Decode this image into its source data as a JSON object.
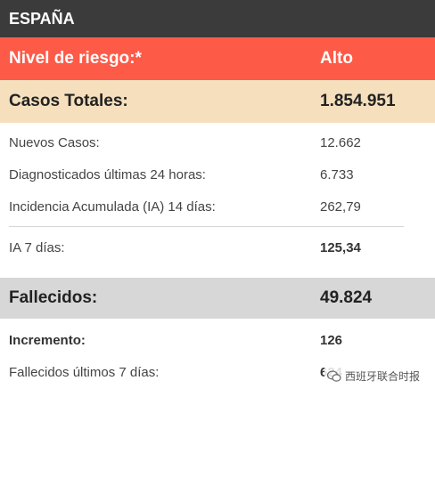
{
  "header": {
    "title": "ESPAÑA"
  },
  "risk": {
    "label": "Nivel de riesgo:*",
    "value": "Alto"
  },
  "totals": {
    "label": "Casos Totales:",
    "value": "1.854.951"
  },
  "cases": [
    {
      "label": "Nuevos Casos:",
      "value": "12.662"
    },
    {
      "label": "Diagnosticados últimas 24 horas:",
      "value": "6.733"
    },
    {
      "label": "Incidencia Acumulada (IA) 14 días:",
      "value": "262,79"
    }
  ],
  "ia7": {
    "label": "IA 7 días:",
    "value": "125,34"
  },
  "deaths": {
    "label": "Fallecidos:",
    "value": "49.824"
  },
  "death_rows": [
    {
      "label": "Incremento:",
      "value": "126"
    },
    {
      "label": "Fallecidos últimos 7 días:",
      "value": "624"
    }
  ],
  "watermark": {
    "text": "西班牙联合时报",
    "icon": "wechat-icon"
  },
  "colors": {
    "header_bg": "#3b3b3b",
    "risk_bg": "#fd5a48",
    "totals_bg": "#f5dfbd",
    "deaths_bg": "#d7d7d7"
  }
}
